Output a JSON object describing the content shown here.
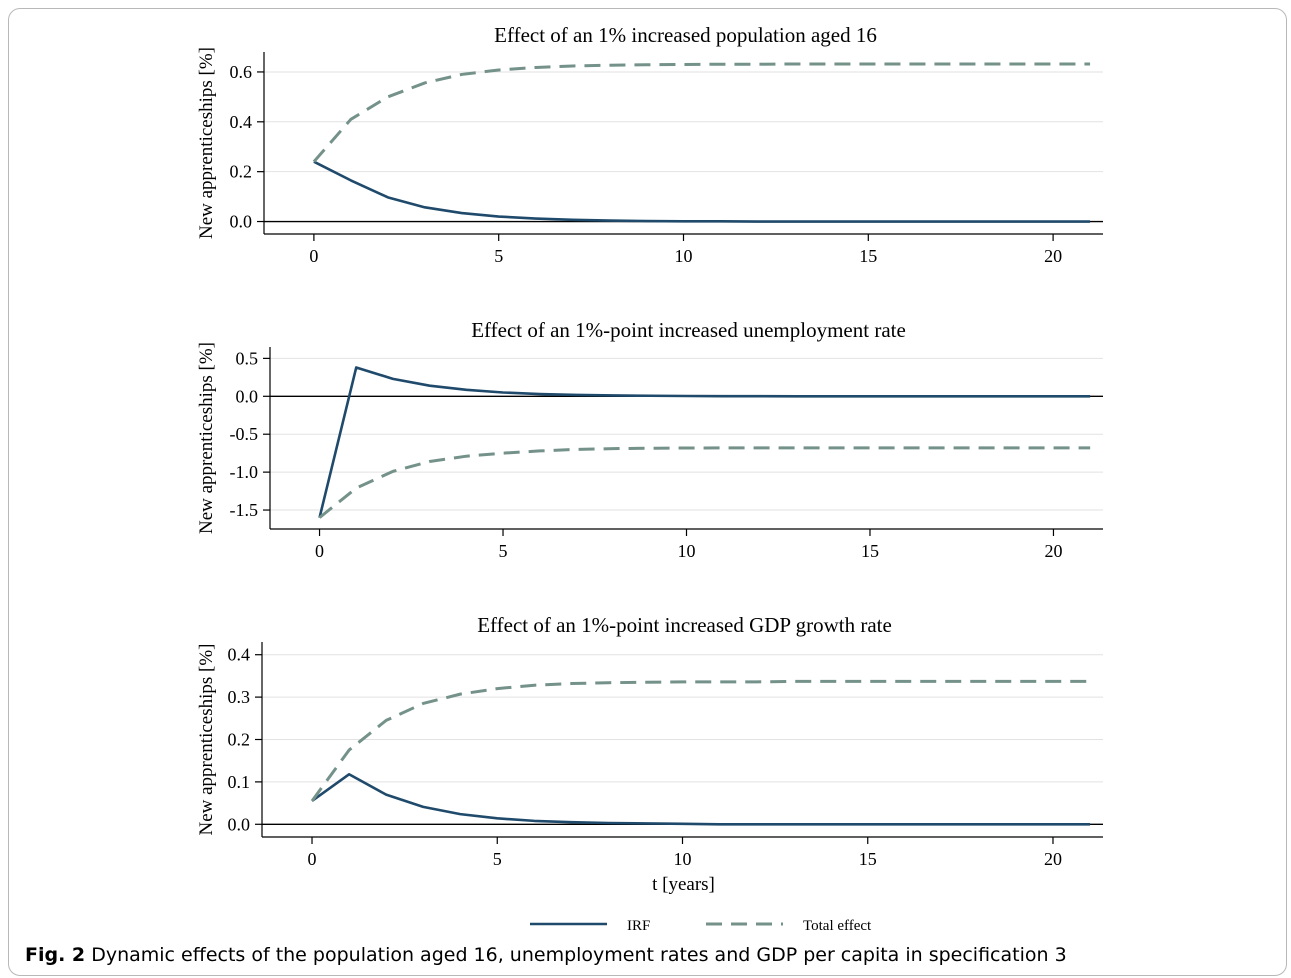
{
  "caption": {
    "label": "Fig. 2",
    "text": "Dynamic effects of the population aged 16, unemployment rates and GDP per capita in specification 3"
  },
  "legend": {
    "position": "bottom-center",
    "irf_label": "IRF",
    "total_label": "Total effect"
  },
  "colors": {
    "irf": "#1f4a6b",
    "total": "#74928a",
    "zero_line": "#000000",
    "grid": "#e2e2e2"
  },
  "chart_data": [
    {
      "type": "line",
      "title": "Effect of an 1% increased population aged 16",
      "xlabel": "",
      "ylabel": "New apprenticeships [%]",
      "xlim": [
        -1.35,
        21.35
      ],
      "ylim": [
        -0.05,
        0.68
      ],
      "xticks": [
        0,
        5,
        10,
        15,
        20
      ],
      "yticks": [
        0.0,
        0.2,
        0.4,
        0.6
      ],
      "ytick_labels": [
        "0.0",
        "0.2",
        "0.4",
        "0.6"
      ],
      "grid": true,
      "x": [
        0,
        1,
        2,
        3,
        4,
        5,
        6,
        7,
        8,
        9,
        10,
        11,
        12,
        13,
        14,
        15,
        16,
        17,
        18,
        19,
        20,
        21
      ],
      "series": [
        {
          "name": "IRF",
          "style": "solid",
          "values": [
            0.24,
            0.165,
            0.097,
            0.057,
            0.034,
            0.02,
            0.012,
            0.007,
            0.004,
            0.002,
            0.001,
            0.001,
            0.0,
            0.0,
            0.0,
            0.0,
            0.0,
            0.0,
            0.0,
            0.0,
            0.0,
            0.0
          ]
        },
        {
          "name": "Total effect",
          "style": "dashed",
          "values": [
            0.24,
            0.41,
            0.5,
            0.556,
            0.59,
            0.608,
            0.618,
            0.624,
            0.627,
            0.629,
            0.63,
            0.631,
            0.631,
            0.632,
            0.632,
            0.632,
            0.632,
            0.632,
            0.632,
            0.632,
            0.632,
            0.632
          ]
        }
      ]
    },
    {
      "type": "line",
      "title": "Effect of an 1%-point increased unemployment rate",
      "xlabel": "",
      "ylabel": "New apprenticeships [%]",
      "xlim": [
        -1.35,
        21.35
      ],
      "ylim": [
        -1.75,
        0.65
      ],
      "xticks": [
        0,
        5,
        10,
        15,
        20
      ],
      "yticks": [
        -1.5,
        -1.0,
        -0.5,
        0.0,
        0.5
      ],
      "ytick_labels": [
        "-1.5",
        "-1.0",
        "-0.5",
        "0.0",
        "0.5"
      ],
      "grid": true,
      "x": [
        0,
        1,
        2,
        3,
        4,
        5,
        6,
        7,
        8,
        9,
        10,
        11,
        12,
        13,
        14,
        15,
        16,
        17,
        18,
        19,
        20,
        21
      ],
      "series": [
        {
          "name": "IRF",
          "style": "solid",
          "values": [
            -1.6,
            0.38,
            0.23,
            0.14,
            0.085,
            0.05,
            0.03,
            0.018,
            0.011,
            0.007,
            0.004,
            0.002,
            0.001,
            0.0,
            0.0,
            0.0,
            0.0,
            0.0,
            0.0,
            0.0,
            0.0,
            0.0
          ]
        },
        {
          "name": "Total effect",
          "style": "dashed",
          "values": [
            -1.6,
            -1.21,
            -0.99,
            -0.86,
            -0.79,
            -0.75,
            -0.72,
            -0.7,
            -0.69,
            -0.685,
            -0.682,
            -0.68,
            -0.68,
            -0.68,
            -0.68,
            -0.68,
            -0.68,
            -0.68,
            -0.68,
            -0.68,
            -0.68,
            -0.68
          ]
        }
      ]
    },
    {
      "type": "line",
      "title": "Effect of an 1%-point increased GDP growth rate",
      "xlabel": "t [years]",
      "ylabel": "New apprenticeships [%]",
      "xlim": [
        -1.35,
        21.35
      ],
      "ylim": [
        -0.03,
        0.43
      ],
      "xticks": [
        0,
        5,
        10,
        15,
        20
      ],
      "yticks": [
        0.0,
        0.1,
        0.2,
        0.3,
        0.4
      ],
      "ytick_labels": [
        "0.0",
        "0.1",
        "0.2",
        "0.3",
        "0.4"
      ],
      "grid": true,
      "x": [
        0,
        1,
        2,
        3,
        4,
        5,
        6,
        7,
        8,
        9,
        10,
        11,
        12,
        13,
        14,
        15,
        16,
        17,
        18,
        19,
        20,
        21
      ],
      "series": [
        {
          "name": "IRF",
          "style": "solid",
          "values": [
            0.055,
            0.118,
            0.07,
            0.041,
            0.024,
            0.014,
            0.008,
            0.005,
            0.003,
            0.002,
            0.001,
            0.0,
            0.0,
            0.0,
            0.0,
            0.0,
            0.0,
            0.0,
            0.0,
            0.0,
            0.0,
            0.0
          ]
        },
        {
          "name": "Total effect",
          "style": "dashed",
          "values": [
            0.055,
            0.175,
            0.245,
            0.285,
            0.307,
            0.32,
            0.328,
            0.332,
            0.334,
            0.335,
            0.336,
            0.336,
            0.336,
            0.337,
            0.337,
            0.337,
            0.337,
            0.337,
            0.337,
            0.337,
            0.337,
            0.337
          ]
        }
      ]
    }
  ]
}
